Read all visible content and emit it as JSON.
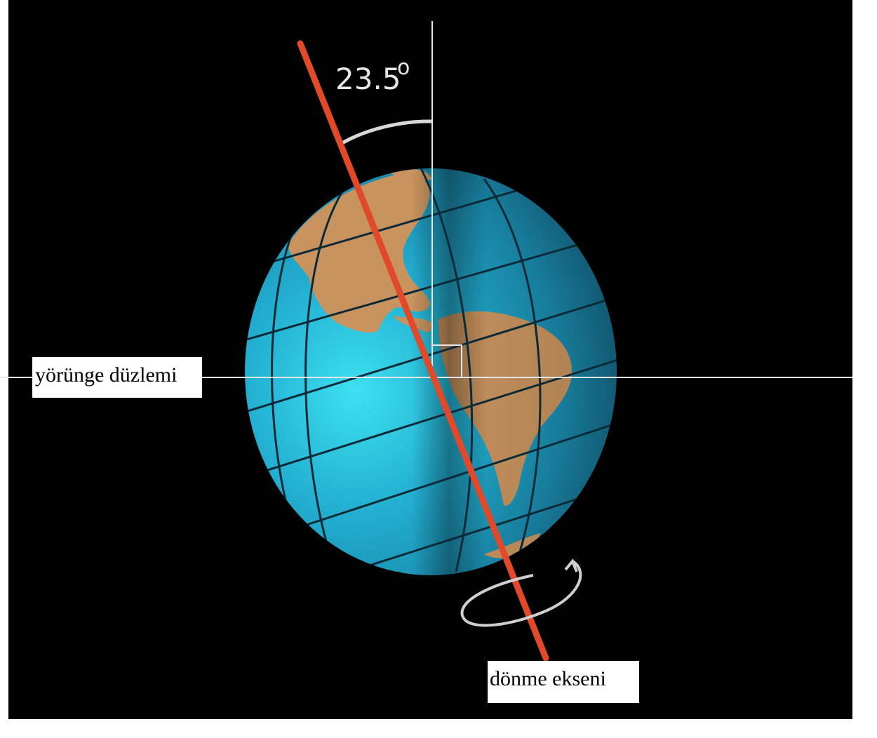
{
  "diagram": {
    "angle_value": "23.5",
    "angle_unit": "o",
    "orbit_plane_label": "yörünge düzlemi",
    "rotation_axis_label": "dönme ekseni"
  },
  "colors": {
    "background": "#000000",
    "ocean": "#1e9fc0",
    "land": "#c8935e",
    "axis": "#e04a2a",
    "lines": "#e6e6e6"
  }
}
